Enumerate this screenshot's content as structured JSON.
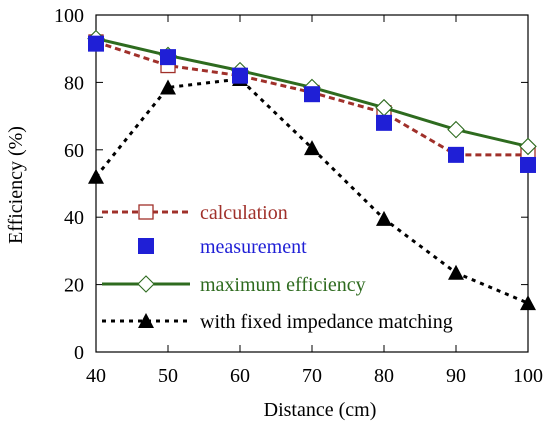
{
  "chart_data": {
    "type": "line",
    "title": "",
    "xlabel": "Distance (cm)",
    "ylabel": "Efficiency (%)",
    "xlim": [
      40,
      100
    ],
    "ylim": [
      0,
      100
    ],
    "xticks": [
      40,
      50,
      60,
      70,
      80,
      90,
      100
    ],
    "yticks": [
      0,
      20,
      40,
      60,
      80,
      100
    ],
    "grid": false,
    "legend_position": "bottom-left",
    "x": [
      40,
      50,
      60,
      70,
      80,
      90,
      100
    ],
    "series": [
      {
        "name": "calculation",
        "values": [
          92,
          85,
          82,
          77,
          71,
          58.5,
          58.5
        ],
        "color": "#a0302a",
        "line": "dashed",
        "marker": "open-square"
      },
      {
        "name": "measurement",
        "values": [
          91.5,
          87.5,
          82,
          76.5,
          68,
          58.5,
          55.5
        ],
        "color": "#1f1fd6",
        "line": "none",
        "marker": "filled-square"
      },
      {
        "name": "maximum efficiency",
        "values": [
          93,
          88,
          83.5,
          78.5,
          72.5,
          66,
          61
        ],
        "color": "#2e6b1f",
        "line": "solid",
        "marker": "open-diamond"
      },
      {
        "name": "with fixed impedance matching",
        "values": [
          52,
          78.5,
          81,
          60.5,
          39.5,
          23.5,
          14.5
        ],
        "color": "#000000",
        "line": "dotted",
        "marker": "filled-triangle"
      }
    ]
  }
}
